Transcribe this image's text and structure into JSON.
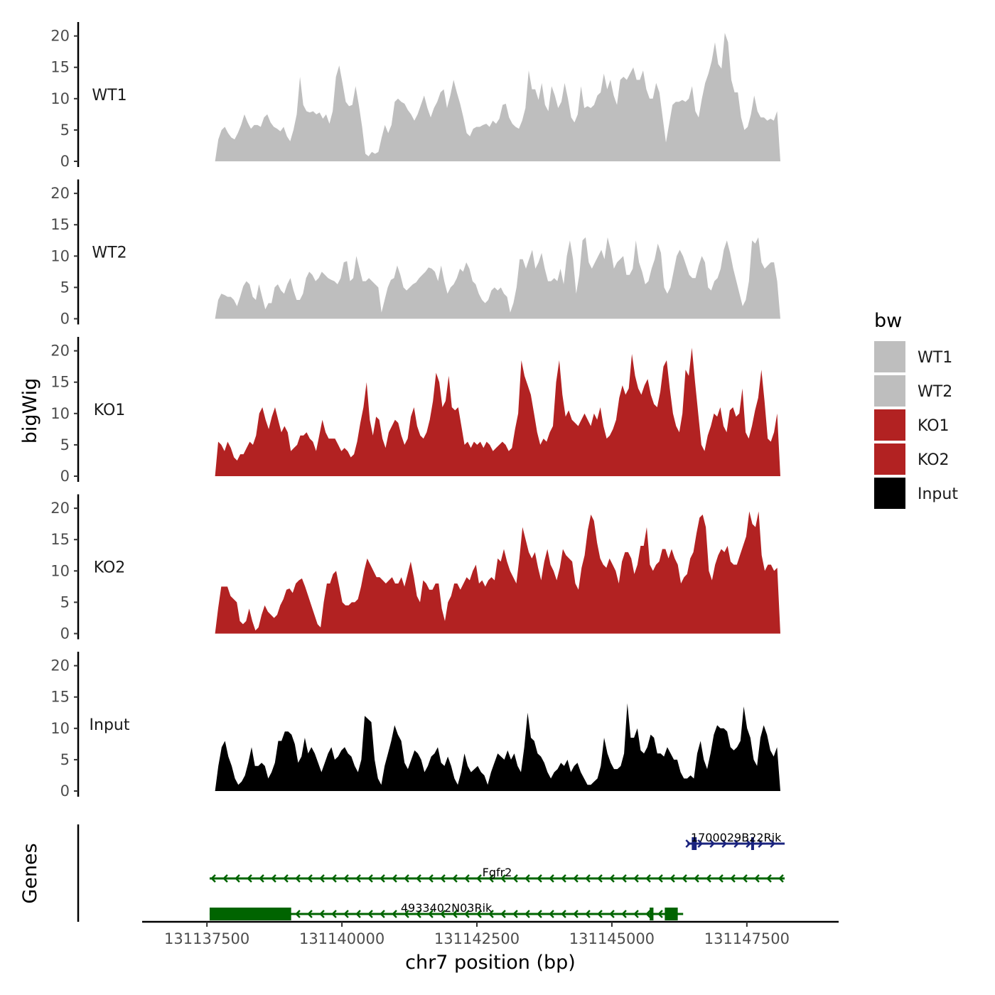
{
  "chart_data": {
    "type": "area",
    "region": "chr7",
    "y_axis_title": "bigWig",
    "x_axis_title": "chr7 position (bp)",
    "genes_panel_title": "Genes",
    "xlim": [
      131136300,
      131149200
    ],
    "x_data_start": 131137650,
    "x_data_end": 131148120,
    "x_ticks": [
      131137500,
      131140000,
      131142500,
      131145000,
      131147500
    ],
    "x_tick_labels": [
      "131137500",
      "131140000",
      "131142500",
      "131145000",
      "131147500"
    ],
    "ylim": [
      0,
      22
    ],
    "y_ticks": [
      0,
      5,
      10,
      15,
      20
    ],
    "y_tick_labels": [
      "0",
      "5",
      "10",
      "15",
      "20"
    ],
    "legend": {
      "title": "bw",
      "entries": [
        {
          "label": "WT1",
          "color": "#bebebe"
        },
        {
          "label": "WT2",
          "color": "#bebebe"
        },
        {
          "label": "KO1",
          "color": "#b22222"
        },
        {
          "label": "KO2",
          "color": "#b22222"
        },
        {
          "label": "Input",
          "color": "#000000"
        }
      ]
    },
    "series": [
      {
        "name": "WT1",
        "color": "#bebebe",
        "values": [
          0,
          3.5,
          5,
          5.5,
          4.5,
          3.8,
          3.5,
          4.5,
          5.8,
          7.5,
          6.2,
          5.2,
          5.8,
          5.8,
          5.5,
          7,
          7.5,
          6.2,
          5.5,
          5.2,
          4.8,
          5.5,
          4,
          3.2,
          5,
          7.5,
          13.5,
          9,
          8,
          7.8,
          8,
          7.5,
          7.8,
          6.8,
          7.5,
          6,
          8,
          13.5,
          15.3,
          12.5,
          9.5,
          8.8,
          9,
          12,
          9,
          5.5,
          1.2,
          0.8,
          1.5,
          1.2,
          1.5,
          3.8,
          5.8,
          4.5,
          5.8,
          9.5,
          10,
          9.5,
          9.2,
          8.2,
          7.5,
          6.5,
          7.5,
          9,
          10.5,
          8.5,
          7,
          8.5,
          9.5,
          11,
          11.5,
          8.5,
          10.5,
          13,
          11,
          9.2,
          7,
          4.5,
          4,
          5.2,
          5.5,
          5.5,
          5.8,
          6,
          5.5,
          6.5,
          6,
          6.8,
          9,
          9.2,
          7,
          6,
          5.5,
          5.2,
          6.5,
          8.5,
          14.5,
          11.5,
          11.5,
          9.8,
          12.5,
          9,
          8,
          12,
          10.5,
          8.5,
          9.5,
          12.5,
          10,
          7,
          6.2,
          7.5,
          12,
          8.5,
          8.8,
          8.5,
          9,
          10.5,
          11,
          14,
          11.5,
          13,
          10.5,
          9,
          13,
          13.5,
          13,
          14,
          15,
          13,
          13,
          14.5,
          11.5,
          10,
          10,
          12.5,
          11,
          7,
          3,
          6,
          9,
          9.5,
          9.5,
          9.8,
          9.5,
          10,
          12,
          8,
          7,
          10,
          12.5,
          14,
          16,
          19,
          15.5,
          14.8,
          20.5,
          19,
          13,
          11,
          11,
          7,
          5,
          5.5,
          7.5,
          10.5,
          8,
          7,
          7,
          6.5,
          6.8,
          6.5,
          8,
          0
        ]
      },
      {
        "name": "WT2",
        "color": "#bebebe",
        "values": [
          0,
          3,
          4,
          3.8,
          3.5,
          3.5,
          3,
          2,
          3.5,
          5.2,
          6,
          5.5,
          3.5,
          3,
          5.5,
          3.5,
          1.5,
          2.5,
          2.5,
          5,
          5.5,
          4.5,
          4,
          5.5,
          6.5,
          4.5,
          3,
          3,
          4,
          6.5,
          7.5,
          7,
          6,
          6.5,
          7.5,
          7,
          6.5,
          6.2,
          6,
          5.5,
          6.5,
          9,
          9.2,
          6,
          6.5,
          10,
          8,
          6,
          6,
          6.5,
          6,
          5.5,
          5,
          1,
          3,
          5,
          6.2,
          6.5,
          8.5,
          7,
          5,
          4.5,
          5,
          5.5,
          5.8,
          6.5,
          7,
          7.5,
          8.2,
          8,
          7.5,
          6,
          8.5,
          6,
          4,
          5,
          5.5,
          6.5,
          8,
          7.5,
          9,
          8,
          6,
          5.5,
          4,
          3,
          2.5,
          3,
          4.5,
          5,
          4.5,
          5,
          4,
          3.5,
          1,
          2.5,
          5,
          9.5,
          9.5,
          8,
          9.5,
          11,
          8,
          9,
          10.5,
          8,
          6,
          6,
          6.5,
          6,
          8,
          5.5,
          10,
          12.5,
          9.5,
          4,
          7,
          12.5,
          13,
          9,
          8,
          9,
          10,
          11,
          9.5,
          13,
          11,
          8,
          9,
          9.5,
          10,
          7,
          7,
          8,
          12.5,
          9,
          7.5,
          5.5,
          6,
          8,
          9.5,
          12,
          10.5,
          5,
          4,
          5,
          7.5,
          10,
          11,
          10,
          8.5,
          7,
          6.5,
          6.5,
          8.5,
          10,
          9,
          5,
          4.5,
          6,
          6.5,
          8,
          11,
          12.5,
          10.5,
          8,
          6,
          4,
          2,
          3,
          6,
          12.5,
          12,
          13,
          9,
          8,
          8.5,
          9,
          9,
          6,
          0
        ]
      },
      {
        "name": "KO1",
        "color": "#b22222",
        "values": [
          0,
          5.5,
          5,
          4,
          5.5,
          4.5,
          3,
          2.5,
          3.5,
          3.5,
          4.5,
          5.5,
          5,
          6.5,
          10,
          11,
          9,
          7.5,
          9.5,
          11,
          9,
          7,
          8,
          7,
          4,
          4.5,
          5,
          6.5,
          6.5,
          7,
          6,
          5.5,
          4,
          6.5,
          9,
          7,
          6,
          6,
          6,
          5,
          4,
          4.5,
          4,
          3,
          3.5,
          5.5,
          8.5,
          11,
          15,
          9,
          6.5,
          9.5,
          9,
          6,
          4.5,
          7,
          8,
          9,
          8.5,
          6.5,
          5,
          6,
          9.5,
          11,
          8,
          6.5,
          6,
          7,
          9,
          12,
          16.5,
          15,
          11,
          12,
          16,
          11,
          10.5,
          11,
          8,
          5,
          5.5,
          4.5,
          5.5,
          5,
          5.5,
          4.5,
          5.5,
          5,
          4,
          4.5,
          5,
          5.5,
          5,
          4,
          4.5,
          7.5,
          10,
          18.5,
          16,
          14.5,
          13,
          10,
          7,
          5,
          6,
          5.5,
          7,
          8,
          15,
          18.5,
          13,
          9.5,
          10.5,
          9,
          8.5,
          8,
          9,
          10,
          9,
          8,
          10,
          9,
          11,
          8,
          6,
          6.5,
          7.5,
          9,
          12.5,
          14.5,
          13,
          14,
          19.5,
          16,
          14,
          13,
          14.5,
          15.5,
          13,
          11.5,
          11,
          13.5,
          17.5,
          18.5,
          14,
          10,
          8,
          7,
          10,
          17,
          16,
          20.5,
          15,
          10,
          5,
          4,
          6.5,
          8,
          10,
          9.5,
          11,
          8,
          7,
          10.5,
          11,
          9.5,
          10,
          14,
          7,
          6,
          8,
          10.5,
          12.5,
          17,
          12,
          6,
          5.5,
          7,
          10,
          0
        ]
      },
      {
        "name": "KO2",
        "color": "#b22222",
        "values": [
          0,
          4,
          7.5,
          7.5,
          7.5,
          6,
          5.5,
          5,
          2,
          1.5,
          2,
          4,
          2,
          0.5,
          1,
          3,
          4.5,
          3.5,
          3,
          2.5,
          3,
          4.5,
          5.5,
          7,
          7.2,
          6.5,
          8,
          8.5,
          8.8,
          7.5,
          6,
          4.5,
          3,
          1.5,
          1,
          5,
          8,
          8,
          9.5,
          10,
          7.5,
          5,
          4.5,
          4.5,
          5,
          5,
          5.5,
          7.5,
          10,
          12,
          11,
          10,
          9,
          9,
          8.5,
          8,
          8.5,
          9,
          8,
          8,
          9,
          7.5,
          9.5,
          11.5,
          9,
          6,
          5,
          8.5,
          8,
          7,
          7,
          8,
          8,
          4,
          2,
          5,
          6,
          8,
          8,
          7,
          8,
          9,
          8.5,
          10,
          11,
          8,
          8.5,
          7.5,
          8.5,
          9,
          8.5,
          12,
          11.5,
          13.5,
          11.5,
          10,
          9,
          8,
          12,
          17,
          15,
          13,
          12,
          13,
          10.5,
          8.5,
          11.5,
          13.5,
          11,
          10,
          8.5,
          10.5,
          13.5,
          12.5,
          12,
          11.5,
          8,
          7,
          10.5,
          12.5,
          16.5,
          19,
          18,
          14.5,
          12,
          11,
          10.5,
          12,
          11,
          10,
          8,
          11.5,
          13,
          13,
          12,
          9.5,
          11,
          14,
          14,
          17,
          11,
          10,
          11,
          11.5,
          13.5,
          13.5,
          12,
          13.5,
          12,
          11,
          8,
          9,
          9.5,
          12,
          13,
          16,
          18.5,
          19,
          17,
          10,
          8.5,
          11,
          12.5,
          13.5,
          13,
          14,
          11.5,
          11,
          11,
          12.5,
          14,
          15.5,
          19.5,
          17.5,
          17,
          19.5,
          12.5,
          10,
          11,
          11,
          10,
          10.5,
          0
        ]
      },
      {
        "name": "Input",
        "color": "#000000",
        "values": [
          0,
          4,
          7,
          8,
          5.5,
          4,
          2,
          1,
          1.5,
          2.5,
          4.5,
          7,
          4,
          4,
          4.5,
          4,
          2,
          3,
          4.5,
          8,
          8,
          9.5,
          9.5,
          9,
          7.5,
          4.5,
          5.5,
          8.5,
          6,
          7,
          6,
          4.5,
          3,
          4.5,
          6,
          7,
          5,
          5.5,
          6.5,
          7,
          6,
          5.5,
          4,
          3,
          5,
          12,
          11.5,
          11,
          5,
          2,
          1,
          4,
          6,
          8,
          10.5,
          9,
          8,
          4.5,
          3.5,
          5,
          6.5,
          6,
          5,
          3,
          4,
          5.5,
          6,
          7,
          4.5,
          4,
          5.5,
          4,
          2,
          1,
          3,
          6,
          4,
          3,
          3.5,
          4,
          3,
          2.5,
          1,
          3,
          4.5,
          6,
          5.5,
          5,
          6.5,
          5,
          6,
          4,
          3,
          7,
          12.5,
          8.5,
          8,
          6,
          5.5,
          4.5,
          3,
          2,
          3,
          3.5,
          4.5,
          4,
          5,
          3,
          4,
          4.5,
          3,
          2,
          1,
          1,
          1.5,
          2,
          4,
          8.5,
          6,
          4.5,
          3.5,
          3.5,
          4,
          6,
          14,
          8.5,
          8.5,
          10,
          6.5,
          6,
          7,
          9,
          8.5,
          6,
          6,
          5.5,
          7,
          6,
          5,
          5,
          3,
          2,
          2,
          2.5,
          2,
          6,
          8,
          5,
          3.5,
          6,
          9,
          10.5,
          10,
          10,
          9.5,
          7,
          6.5,
          7,
          8,
          13.5,
          10,
          8.5,
          5,
          4,
          8.5,
          10.5,
          9,
          6.5,
          5.5,
          7,
          0
        ]
      }
    ],
    "genes": [
      {
        "name": "1700029B22Rik",
        "strand": "+",
        "color": "#1a237e",
        "start": 131146400,
        "end": 131148200,
        "exons": [
          [
            131146480,
            131146570
          ],
          [
            131147580,
            131147620
          ]
        ]
      },
      {
        "name": "Fgfr2",
        "strand": "-",
        "color": "#006400",
        "start": 131137550,
        "end": 131148200,
        "exons": []
      },
      {
        "name": "4933402N03Rik",
        "strand": "-",
        "color": "#006400",
        "start": 131137550,
        "end": 131146320,
        "exons": [
          [
            131137550,
            131139060
          ],
          [
            131145700,
            131145770
          ],
          [
            131145980,
            131146220
          ]
        ]
      }
    ]
  }
}
